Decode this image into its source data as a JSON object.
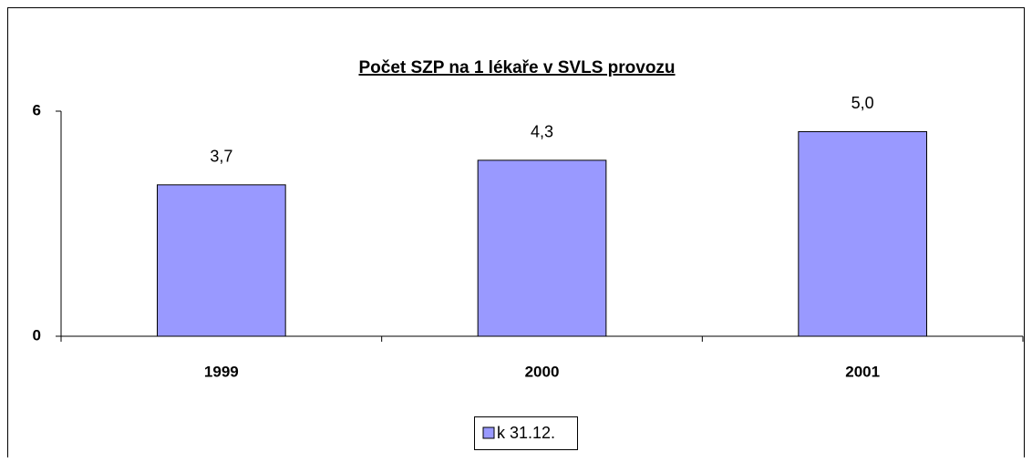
{
  "chart_data": {
    "type": "bar",
    "title": "Počet SZP na 1 lékaře v SVLS provozu",
    "categories": [
      "1999",
      "2000",
      "2001"
    ],
    "series": [
      {
        "name": "k 31.12.",
        "color": "#9999ff",
        "values": [
          3.7,
          4.3,
          5.0
        ],
        "value_labels": [
          "3,7",
          "4,3",
          "5,0"
        ]
      }
    ],
    "ylim": [
      0,
      5.5
    ],
    "yticks": [
      0,
      {
        "value": 5.5,
        "label": "6"
      }
    ],
    "legend": "bottom"
  }
}
